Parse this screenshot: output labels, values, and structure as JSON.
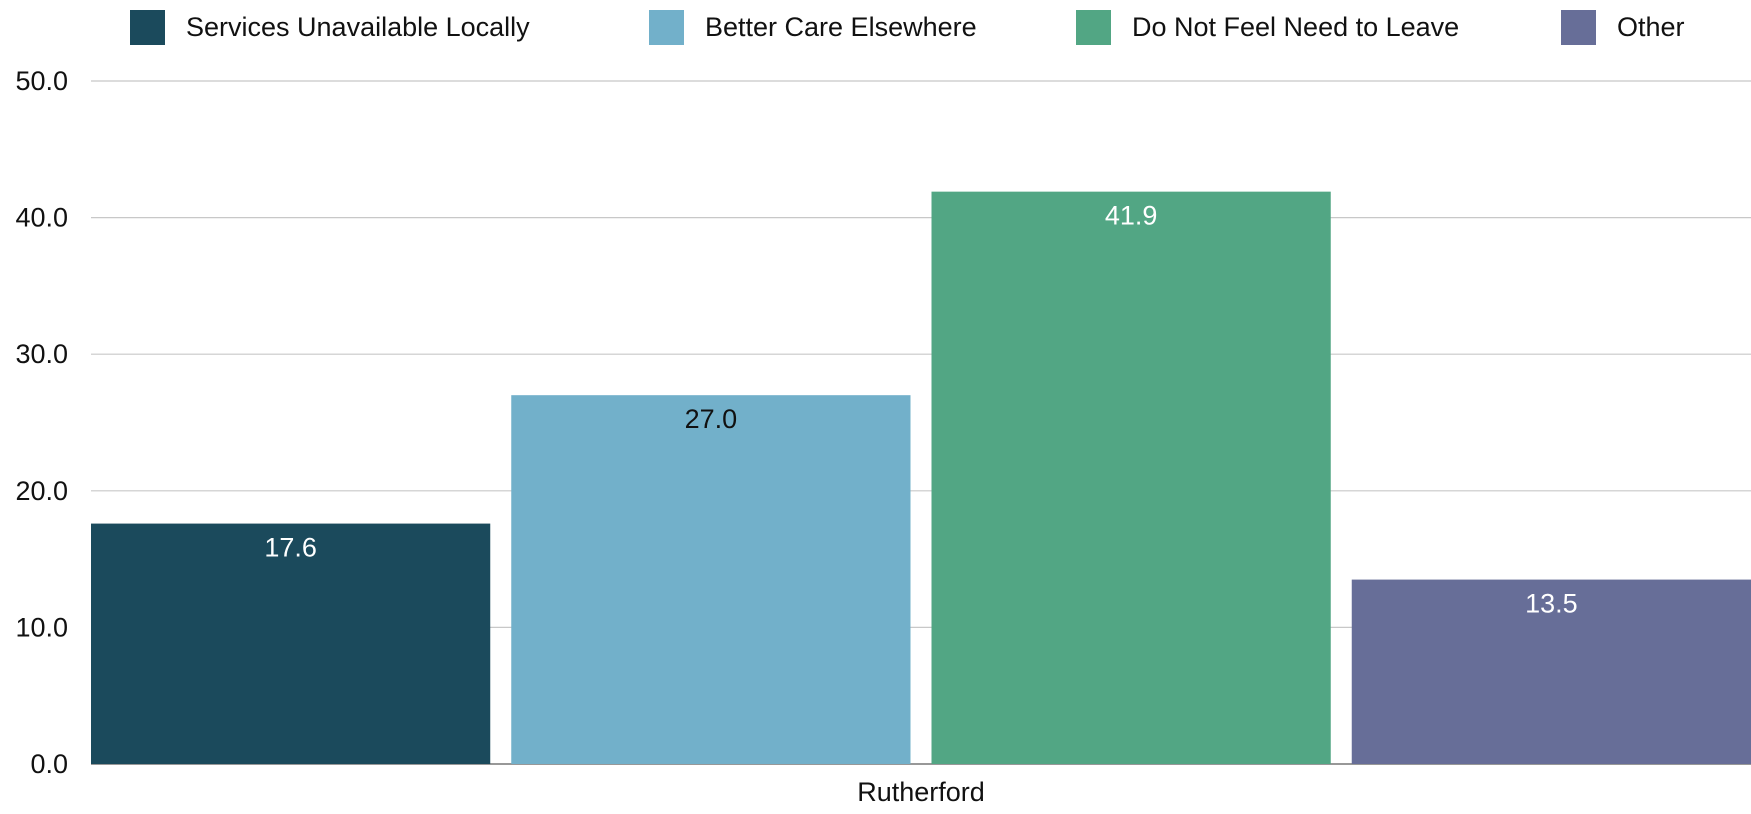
{
  "chart_data": {
    "type": "bar",
    "categories": [
      "Rutherford"
    ],
    "series": [
      {
        "name": "Services Unavailable Locally",
        "values": [
          17.6
        ],
        "color": "#1b4a5c"
      },
      {
        "name": "Better Care Elsewhere",
        "values": [
          27.0
        ],
        "color": "#72b0ca"
      },
      {
        "name": "Do Not Feel Need to Leave",
        "values": [
          41.9
        ],
        "color": "#52a684"
      },
      {
        "name": "Other",
        "values": [
          13.5
        ],
        "color": "#676e98"
      }
    ],
    "data_labels": [
      "17.6",
      "27.0",
      "41.9",
      "13.5"
    ],
    "data_label_colors": [
      "#ffffff",
      "#111111",
      "#ffffff",
      "#ffffff"
    ],
    "yticks": [
      "0.0",
      "10.0",
      "20.0",
      "30.0",
      "40.0",
      "50.0"
    ],
    "ylim": [
      0,
      50
    ],
    "grid": true,
    "legend_position": "top",
    "title": "",
    "xlabel": "",
    "ylabel": ""
  }
}
